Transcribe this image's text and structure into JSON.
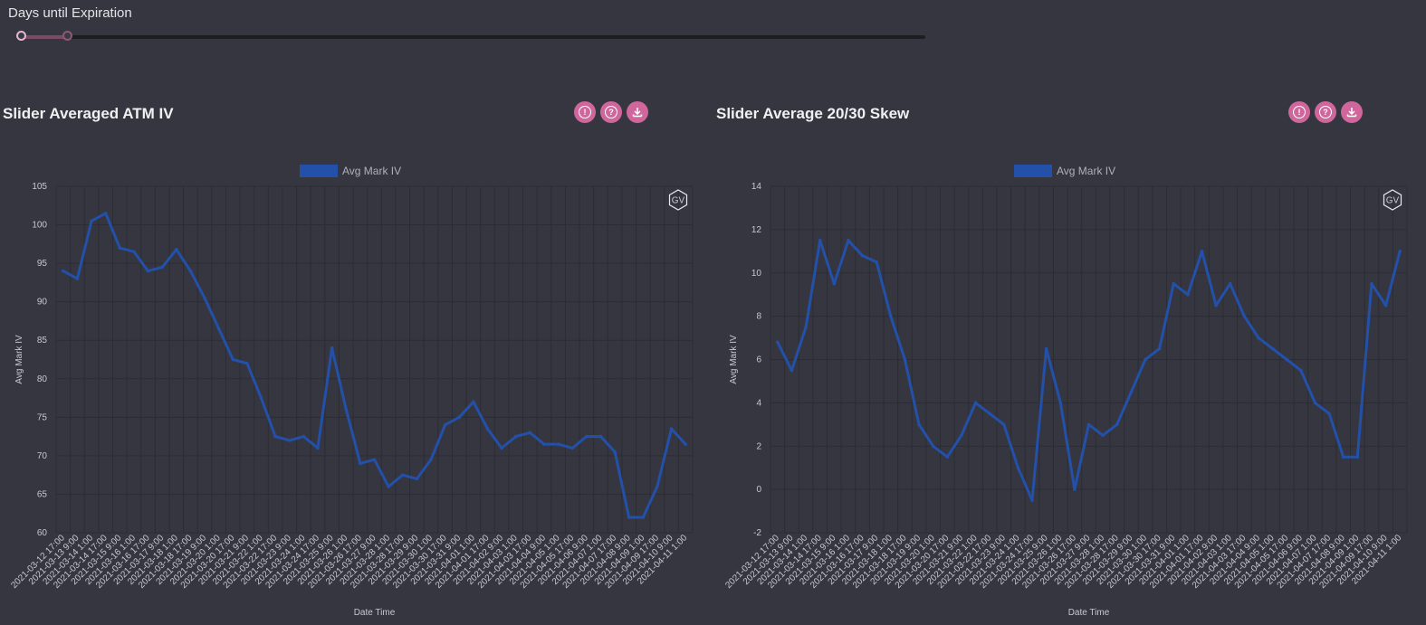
{
  "slider": {
    "label": "Days until Expiration"
  },
  "panels": [
    {
      "title": "Slider Averaged ATM IV",
      "buttons": [
        "info-icon",
        "help-icon",
        "download-icon"
      ]
    },
    {
      "title": "Slider Average 20/30 Skew",
      "buttons": [
        "info-icon",
        "help-icon",
        "download-icon"
      ]
    }
  ],
  "colors": {
    "series": "#2350a8",
    "accent": "#d0679c",
    "background": "#363640",
    "grid": "#2c2c34"
  },
  "chart_data": [
    {
      "type": "line",
      "legend": "Avg Mark IV",
      "legend_position": "top",
      "xlabel": "Date Time",
      "ylabel": "Avg Mark IV",
      "watermark": "GV",
      "ylim": [
        60,
        105
      ],
      "yticks": [
        60,
        65,
        70,
        75,
        80,
        85,
        90,
        95,
        100,
        105
      ],
      "grid": true,
      "categories": [
        "2021-03-12 17:00",
        "2021-03-13 9:00",
        "2021-03-14 1:00",
        "2021-03-14 17:00",
        "2021-03-15 9:00",
        "2021-03-16 1:00",
        "2021-03-16 17:00",
        "2021-03-17 9:00",
        "2021-03-18 1:00",
        "2021-03-18 17:00",
        "2021-03-19 9:00",
        "2021-03-20 1:00",
        "2021-03-20 17:00",
        "2021-03-21 9:00",
        "2021-03-22 1:00",
        "2021-03-22 17:00",
        "2021-03-23 9:00",
        "2021-03-24 1:00",
        "2021-03-24 17:00",
        "2021-03-25 9:00",
        "2021-03-26 1:00",
        "2021-03-26 17:00",
        "2021-03-27 9:00",
        "2021-03-28 1:00",
        "2021-03-28 17:00",
        "2021-03-29 9:00",
        "2021-03-30 1:00",
        "2021-03-30 17:00",
        "2021-03-31 9:00",
        "2021-04-01 1:00",
        "2021-04-01 17:00",
        "2021-04-02 9:00",
        "2021-04-03 1:00",
        "2021-04-03 17:00",
        "2021-04-04 9:00",
        "2021-04-05 1:00",
        "2021-04-05 17:00",
        "2021-04-06 9:00",
        "2021-04-07 1:00",
        "2021-04-07 17:00",
        "2021-04-08 9:00",
        "2021-04-09 1:00",
        "2021-04-09 17:00",
        "2021-04-10 9:00",
        "2021-04-11 1:00"
      ],
      "values": [
        94,
        93,
        100.5,
        101.5,
        97,
        96.5,
        94,
        94.5,
        96.8,
        94,
        90.5,
        86.5,
        82.5,
        82,
        77.5,
        72.5,
        72,
        72.5,
        71,
        84,
        76,
        69,
        69.5,
        66,
        67.5,
        67,
        69.5,
        74,
        75,
        77,
        73.5,
        71,
        72.5,
        73,
        71.5,
        71.5,
        71,
        72.5,
        72.5,
        70.5,
        62,
        62,
        66,
        73.5,
        71.5
      ]
    },
    {
      "type": "line",
      "legend": "Avg Mark IV",
      "legend_position": "top",
      "xlabel": "Date Time",
      "ylabel": "Avg Mark IV",
      "watermark": "GV",
      "ylim": [
        -2,
        14
      ],
      "yticks": [
        -2,
        0,
        2,
        4,
        6,
        8,
        10,
        12,
        14
      ],
      "grid": true,
      "categories": [
        "2021-03-12 17:00",
        "2021-03-13 9:00",
        "2021-03-14 1:00",
        "2021-03-14 17:00",
        "2021-03-15 9:00",
        "2021-03-16 1:00",
        "2021-03-16 17:00",
        "2021-03-17 9:00",
        "2021-03-18 1:00",
        "2021-03-18 17:00",
        "2021-03-19 9:00",
        "2021-03-20 1:00",
        "2021-03-20 17:00",
        "2021-03-21 9:00",
        "2021-03-22 1:00",
        "2021-03-22 17:00",
        "2021-03-23 9:00",
        "2021-03-24 1:00",
        "2021-03-24 17:00",
        "2021-03-25 9:00",
        "2021-03-26 1:00",
        "2021-03-26 17:00",
        "2021-03-27 9:00",
        "2021-03-28 1:00",
        "2021-03-28 17:00",
        "2021-03-29 9:00",
        "2021-03-30 1:00",
        "2021-03-30 17:00",
        "2021-03-31 9:00",
        "2021-04-01 1:00",
        "2021-04-01 17:00",
        "2021-04-02 9:00",
        "2021-04-03 1:00",
        "2021-04-03 17:00",
        "2021-04-04 9:00",
        "2021-04-05 1:00",
        "2021-04-05 17:00",
        "2021-04-06 9:00",
        "2021-04-07 1:00",
        "2021-04-07 17:00",
        "2021-04-08 9:00",
        "2021-04-09 1:00",
        "2021-04-09 17:00",
        "2021-04-10 9:00",
        "2021-04-11 1:00"
      ],
      "values": [
        6.8,
        5.5,
        7.5,
        11.5,
        9.5,
        11.5,
        10.8,
        10.5,
        8,
        6,
        3,
        2,
        1.5,
        2.5,
        4,
        3.5,
        3,
        1,
        -0.5,
        6.5,
        4,
        0,
        3,
        2.5,
        3,
        4.5,
        6,
        6.5,
        9.5,
        9,
        11,
        8.5,
        9.5,
        8,
        7,
        6.5,
        6,
        5.5,
        4,
        3.5,
        1.5,
        1.5,
        9.5,
        8.5,
        11
      ]
    }
  ]
}
